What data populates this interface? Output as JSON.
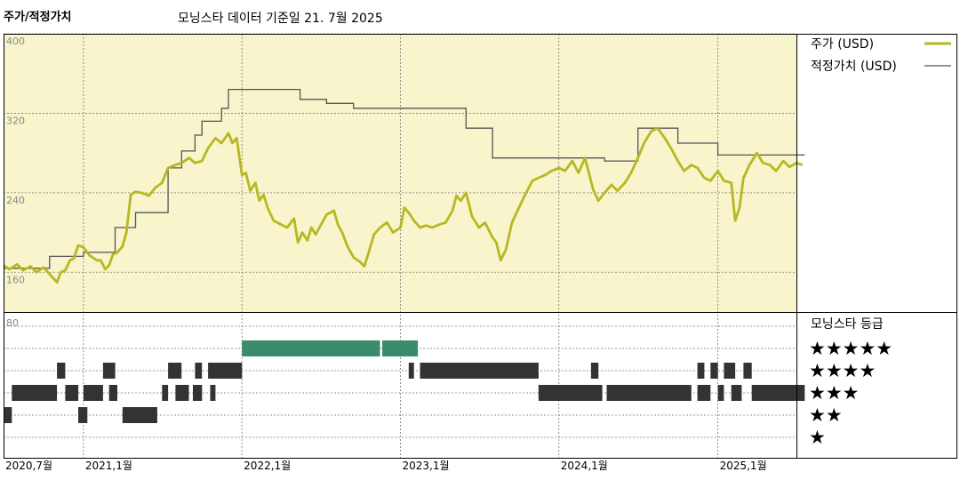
{
  "header": {
    "title": "주가/적정가치",
    "subtitle": "모닝스타 데이터 기준일 21. 7월 2025"
  },
  "colors": {
    "panel_bg": "#f8f4cc",
    "price": "#b7b821",
    "fair": "#555555",
    "five_star": "#3a8c6c",
    "bars": "#333333",
    "grid": "#777777",
    "border": "#000000"
  },
  "legend": {
    "price": "주가 (USD)",
    "fair": "적정가치 (USD)",
    "rating_title": "모닝스타 등급",
    "stars": [
      "★★★★★",
      "★★★★",
      "★★★",
      "★★",
      "★"
    ]
  },
  "chart_data": [
    {
      "type": "line",
      "x_range": [
        "2020-07",
        "2025-07"
      ],
      "ylim": [
        120,
        400
      ],
      "y_ticks": [
        "400",
        "320",
        "240",
        "160"
      ],
      "y_tick_values": [
        400,
        320,
        240,
        160
      ],
      "x_ticks": [
        {
          "label": "2020,7월",
          "date": "2020-07"
        },
        {
          "label": "2021,1월",
          "date": "2021-01"
        },
        {
          "label": "2022,1월",
          "date": "2022-01"
        },
        {
          "label": "2023,1월",
          "date": "2023-01"
        },
        {
          "label": "2024,1월",
          "date": "2024-01"
        },
        {
          "label": "2025,1월",
          "date": "2025-01"
        }
      ],
      "grid": true,
      "series": [
        {
          "name": "주가 (USD)",
          "points": [
            [
              "2020-07-01",
              167
            ],
            [
              "2020-07-15",
              163
            ],
            [
              "2020-08-01",
              168
            ],
            [
              "2020-08-15",
              162
            ],
            [
              "2020-09-01",
              166
            ],
            [
              "2020-09-15",
              160
            ],
            [
              "2020-10-01",
              165
            ],
            [
              "2020-10-15",
              158
            ],
            [
              "2020-11-01",
              150
            ],
            [
              "2020-11-10",
              160
            ],
            [
              "2020-11-20",
              162
            ],
            [
              "2020-12-01",
              172
            ],
            [
              "2020-12-10",
              174
            ],
            [
              "2020-12-20",
              187
            ],
            [
              "2021-01-01",
              185
            ],
            [
              "2021-01-15",
              177
            ],
            [
              "2021-02-01",
              172
            ],
            [
              "2021-02-10",
              172
            ],
            [
              "2021-02-20",
              163
            ],
            [
              "2021-03-01",
              167
            ],
            [
              "2021-03-10",
              178
            ],
            [
              "2021-03-20",
              180
            ],
            [
              "2021-04-01",
              186
            ],
            [
              "2021-04-10",
              200
            ],
            [
              "2021-04-20",
              238
            ],
            [
              "2021-05-01",
              241
            ],
            [
              "2021-05-15",
              240
            ],
            [
              "2021-06-01",
              237
            ],
            [
              "2021-06-15",
              245
            ],
            [
              "2021-07-01",
              250
            ],
            [
              "2021-07-15",
              265
            ],
            [
              "2021-08-01",
              268
            ],
            [
              "2021-08-15",
              270
            ],
            [
              "2021-09-01",
              275
            ],
            [
              "2021-09-15",
              270
            ],
            [
              "2021-10-01",
              272
            ],
            [
              "2021-10-15",
              285
            ],
            [
              "2021-11-01",
              295
            ],
            [
              "2021-11-15",
              290
            ],
            [
              "2021-12-01",
              300
            ],
            [
              "2021-12-10",
              290
            ],
            [
              "2021-12-20",
              295
            ],
            [
              "2022-01-01",
              258
            ],
            [
              "2022-01-10",
              260
            ],
            [
              "2022-01-20",
              242
            ],
            [
              "2022-02-01",
              250
            ],
            [
              "2022-02-10",
              232
            ],
            [
              "2022-02-20",
              238
            ],
            [
              "2022-03-01",
              225
            ],
            [
              "2022-03-15",
              212
            ],
            [
              "2022-04-01",
              208
            ],
            [
              "2022-04-15",
              205
            ],
            [
              "2022-05-01",
              214
            ],
            [
              "2022-05-10",
              190
            ],
            [
              "2022-05-20",
              200
            ],
            [
              "2022-06-01",
              192
            ],
            [
              "2022-06-10",
              205
            ],
            [
              "2022-06-20",
              198
            ],
            [
              "2022-07-01",
              207
            ],
            [
              "2022-07-15",
              218
            ],
            [
              "2022-08-01",
              222
            ],
            [
              "2022-08-10",
              208
            ],
            [
              "2022-08-20",
              200
            ],
            [
              "2022-09-01",
              186
            ],
            [
              "2022-09-15",
              175
            ],
            [
              "2022-10-01",
              170
            ],
            [
              "2022-10-10",
              166
            ],
            [
              "2022-10-20",
              180
            ],
            [
              "2022-11-01",
              198
            ],
            [
              "2022-11-15",
              205
            ],
            [
              "2022-12-01",
              210
            ],
            [
              "2022-12-15",
              200
            ],
            [
              "2023-01-01",
              205
            ],
            [
              "2023-01-10",
              225
            ],
            [
              "2023-01-20",
              220
            ],
            [
              "2023-02-01",
              212
            ],
            [
              "2023-02-15",
              205
            ],
            [
              "2023-03-01",
              207
            ],
            [
              "2023-03-15",
              205
            ],
            [
              "2023-04-01",
              208
            ],
            [
              "2023-04-15",
              210
            ],
            [
              "2023-05-01",
              222
            ],
            [
              "2023-05-10",
              237
            ],
            [
              "2023-05-20",
              232
            ],
            [
              "2023-06-01",
              240
            ],
            [
              "2023-06-15",
              216
            ],
            [
              "2023-07-01",
              205
            ],
            [
              "2023-07-15",
              210
            ],
            [
              "2023-08-01",
              195
            ],
            [
              "2023-08-10",
              190
            ],
            [
              "2023-08-20",
              172
            ],
            [
              "2023-09-01",
              183
            ],
            [
              "2023-09-15",
              210
            ],
            [
              "2023-10-01",
              225
            ],
            [
              "2023-10-15",
              238
            ],
            [
              "2023-11-01",
              252
            ],
            [
              "2023-11-15",
              255
            ],
            [
              "2023-12-01",
              258
            ],
            [
              "2023-12-15",
              262
            ],
            [
              "2024-01-01",
              265
            ],
            [
              "2024-01-15",
              262
            ],
            [
              "2024-02-01",
              272
            ],
            [
              "2024-02-15",
              260
            ],
            [
              "2024-03-01",
              275
            ],
            [
              "2024-03-10",
              260
            ],
            [
              "2024-03-20",
              243
            ],
            [
              "2024-04-01",
              232
            ],
            [
              "2024-04-15",
              240
            ],
            [
              "2024-05-01",
              248
            ],
            [
              "2024-05-15",
              242
            ],
            [
              "2024-06-01",
              250
            ],
            [
              "2024-06-15",
              260
            ],
            [
              "2024-07-01",
              275
            ],
            [
              "2024-07-15",
              290
            ],
            [
              "2024-08-01",
              302
            ],
            [
              "2024-08-15",
              305
            ],
            [
              "2024-09-01",
              295
            ],
            [
              "2024-09-15",
              285
            ],
            [
              "2024-10-01",
              272
            ],
            [
              "2024-10-15",
              262
            ],
            [
              "2024-11-01",
              268
            ],
            [
              "2024-11-15",
              265
            ],
            [
              "2024-12-01",
              255
            ],
            [
              "2024-12-15",
              252
            ],
            [
              "2025-01-01",
              262
            ],
            [
              "2025-01-15",
              252
            ],
            [
              "2025-02-01",
              250
            ],
            [
              "2025-02-10",
              212
            ],
            [
              "2025-02-20",
              225
            ],
            [
              "2025-03-01",
              255
            ],
            [
              "2025-03-15",
              268
            ],
            [
              "2025-04-01",
              280
            ],
            [
              "2025-04-15",
              270
            ],
            [
              "2025-05-01",
              268
            ],
            [
              "2025-05-15",
              262
            ],
            [
              "2025-06-01",
              272
            ],
            [
              "2025-06-15",
              266
            ],
            [
              "2025-07-01",
              270
            ],
            [
              "2025-07-15",
              268
            ]
          ]
        },
        {
          "name": "적정가치 (USD)",
          "points": [
            [
              "2020-07-01",
              164
            ],
            [
              "2020-10-15",
              164
            ],
            [
              "2020-10-15",
              176
            ],
            [
              "2021-01-01",
              176
            ],
            [
              "2021-01-01",
              180
            ],
            [
              "2021-03-15",
              180
            ],
            [
              "2021-03-15",
              205
            ],
            [
              "2021-05-01",
              205
            ],
            [
              "2021-05-01",
              220
            ],
            [
              "2021-07-15",
              220
            ],
            [
              "2021-07-15",
              265
            ],
            [
              "2021-08-15",
              265
            ],
            [
              "2021-08-15",
              282
            ],
            [
              "2021-09-15",
              282
            ],
            [
              "2021-09-15",
              298
            ],
            [
              "2021-10-01",
              298
            ],
            [
              "2021-10-01",
              312
            ],
            [
              "2021-11-15",
              312
            ],
            [
              "2021-11-15",
              325
            ],
            [
              "2021-12-01",
              325
            ],
            [
              "2021-12-01",
              344
            ],
            [
              "2022-05-15",
              344
            ],
            [
              "2022-05-15",
              334
            ],
            [
              "2022-07-15",
              334
            ],
            [
              "2022-07-15",
              330
            ],
            [
              "2022-09-15",
              330
            ],
            [
              "2022-09-15",
              325
            ],
            [
              "2023-06-01",
              325
            ],
            [
              "2023-06-01",
              305
            ],
            [
              "2023-08-01",
              305
            ],
            [
              "2023-08-01",
              275
            ],
            [
              "2024-04-15",
              275
            ],
            [
              "2024-04-15",
              272
            ],
            [
              "2024-07-01",
              272
            ],
            [
              "2024-07-01",
              305
            ],
            [
              "2024-10-01",
              305
            ],
            [
              "2024-10-01",
              290
            ],
            [
              "2025-01-01",
              290
            ],
            [
              "2025-01-01",
              278
            ],
            [
              "2025-07-20",
              278
            ]
          ]
        }
      ]
    },
    {
      "type": "bar",
      "title": "모닝스타 등급",
      "y_ticks": [
        "80"
      ],
      "x_range": [
        "2020-07",
        "2025-07"
      ],
      "ratings": [
        {
          "stars": 5,
          "segments": [
            [
              "2022-01-01",
              "2022-11-15"
            ],
            [
              "2022-11-20",
              "2023-02-10"
            ]
          ]
        },
        {
          "stars": 4,
          "segments": [
            [
              "2020-11-01",
              "2020-11-20"
            ],
            [
              "2021-02-15",
              "2021-03-15"
            ],
            [
              "2021-07-15",
              "2021-08-15"
            ],
            [
              "2021-09-15",
              "2021-10-01"
            ],
            [
              "2021-10-15",
              "2022-01-01"
            ],
            [
              "2023-01-20",
              "2023-02-01"
            ],
            [
              "2023-02-15",
              "2023-11-15"
            ],
            [
              "2024-03-15",
              "2024-04-01"
            ],
            [
              "2024-11-15",
              "2024-12-01"
            ],
            [
              "2024-12-15",
              "2025-01-01"
            ],
            [
              "2025-01-15",
              "2025-02-10"
            ],
            [
              "2025-03-01",
              "2025-03-20"
            ]
          ]
        },
        {
          "stars": 3,
          "segments": [
            [
              "2020-07-20",
              "2020-11-01"
            ],
            [
              "2020-11-20",
              "2020-12-20"
            ],
            [
              "2021-01-01",
              "2021-02-15"
            ],
            [
              "2021-03-01",
              "2021-03-20"
            ],
            [
              "2021-07-01",
              "2021-07-15"
            ],
            [
              "2021-08-01",
              "2021-09-01"
            ],
            [
              "2021-09-10",
              "2021-10-01"
            ],
            [
              "2021-10-20",
              "2021-11-01"
            ],
            [
              "2023-11-15",
              "2024-04-10"
            ],
            [
              "2024-04-20",
              "2024-11-01"
            ],
            [
              "2024-11-15",
              "2024-12-15"
            ],
            [
              "2025-01-01",
              "2025-01-15"
            ],
            [
              "2025-02-01",
              "2025-02-25"
            ],
            [
              "2025-03-20",
              "2025-07-20"
            ]
          ]
        },
        {
          "stars": 2,
          "segments": [
            [
              "2020-07-01",
              "2020-07-20"
            ],
            [
              "2020-12-20",
              "2021-01-10"
            ],
            [
              "2021-04-01",
              "2021-06-20"
            ]
          ]
        },
        {
          "stars": 1,
          "segments": []
        }
      ]
    }
  ]
}
